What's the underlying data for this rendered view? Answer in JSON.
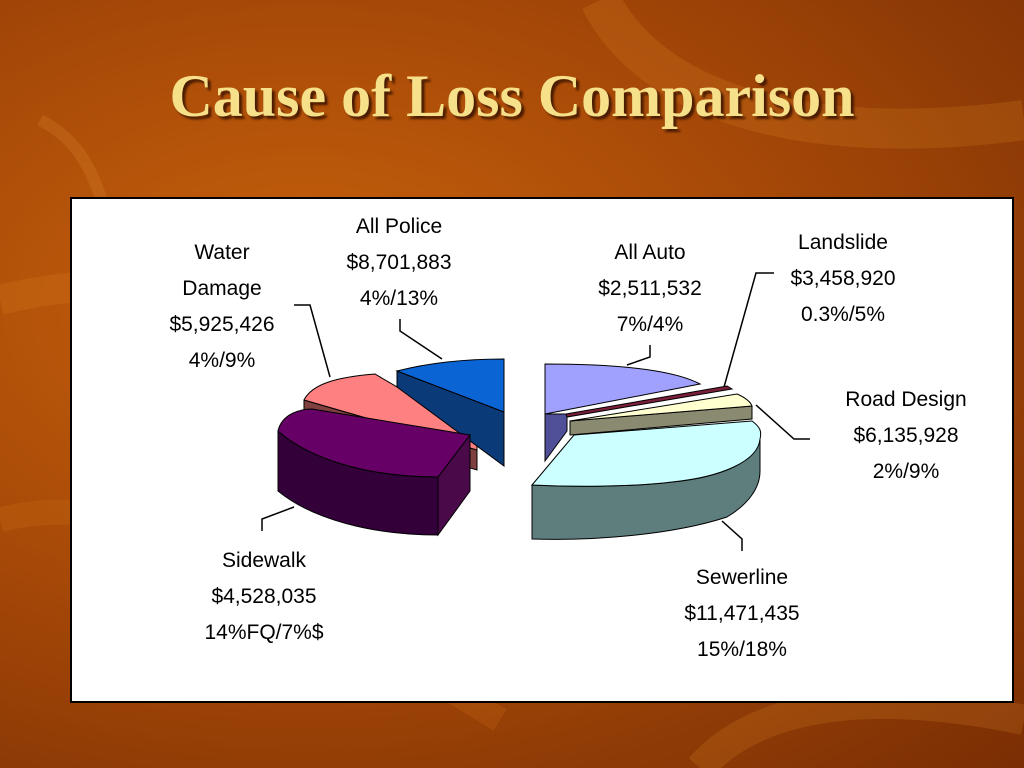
{
  "slide": {
    "title": "Cause of Loss Comparison"
  },
  "chart_data": {
    "type": "pie",
    "title": "",
    "slices": [
      {
        "key": "all_police",
        "label_lines": [
          "All Police",
          "$8,701,883",
          "4%/13%"
        ],
        "amount": 8701883,
        "color": "#0a64d4",
        "side": "#0b3a78"
      },
      {
        "key": "all_auto",
        "label_lines": [
          "All Auto",
          "$2,511,532",
          "7%/4%"
        ],
        "amount": 2511532,
        "color": "#a0a0ff",
        "side": "#505098"
      },
      {
        "key": "landslide",
        "label_lines": [
          "Landslide",
          "$3,458,920",
          "0.3%/5%"
        ],
        "amount": 3458920,
        "color": "#7a1f3a",
        "side": "#4a1020"
      },
      {
        "key": "road_design",
        "label_lines": [
          "Road Design",
          "$6,135,928",
          "2%/9%"
        ],
        "amount": 6135928,
        "color": "#ffffd0",
        "side": "#8a8a70"
      },
      {
        "key": "sewerline",
        "label_lines": [
          "Sewerline",
          "$11,471,435",
          "15%/18%"
        ],
        "amount": 11471435,
        "color": "#ccffff",
        "side": "#5e7e7e"
      },
      {
        "key": "sidewalk",
        "label_lines": [
          "Sidewalk",
          "$4,528,035",
          "14%FQ/7%$"
        ],
        "amount": 4528035,
        "color": "#660066",
        "side": "#33003a"
      },
      {
        "key": "water_damage",
        "label_lines": [
          "Water",
          "Damage",
          "$5,925,426",
          "4%/9%"
        ],
        "amount": 5925426,
        "color": "#ff8080",
        "side": "#804040"
      }
    ]
  }
}
